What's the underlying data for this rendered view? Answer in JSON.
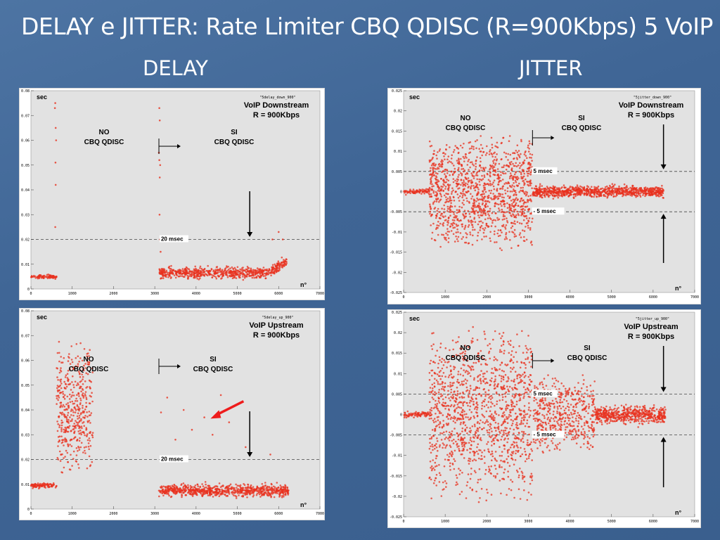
{
  "slide": {
    "title": "DELAY e JITTER: Rate Limiter CBQ QDISC (R=900Kbps) 5 VoIP",
    "left_heading": "DELAY",
    "right_heading": "JITTER"
  },
  "colors": {
    "points": "#e8321f",
    "arrow_red": "#ee1c1c",
    "plot_bg": "#e2e2e2",
    "threshold": "#444444"
  },
  "chart_data": [
    {
      "id": "delay_down",
      "type": "scatter",
      "file_label": "\"5delay_down_900\"",
      "ylabel": "sec",
      "xlabel": "n°",
      "xlim": [
        0,
        7000
      ],
      "ylim": [
        0,
        0.08
      ],
      "xticks": [
        "0",
        "1000",
        "2000",
        "3000",
        "4000",
        "5000",
        "6000",
        "7000"
      ],
      "yticks": [
        "0",
        "0.01",
        "0.02",
        "0.03",
        "0.04",
        "0.05",
        "0.06",
        "0.07",
        "0.08"
      ],
      "title_lines": [
        "VoIP Downstream",
        "R = 900Kbps"
      ],
      "no_label": [
        "NO",
        "CBQ QDISC"
      ],
      "si_label": [
        "SI",
        "CBQ QDISC"
      ],
      "threshold_lines": [
        {
          "y": 0.02,
          "label": "20 msec"
        }
      ],
      "series": [
        {
          "x_range": [
            0,
            620
          ],
          "y_base": 0.005,
          "spread": 0.0012,
          "count": 90,
          "style": "band"
        },
        {
          "x_range": [
            3100,
            6200
          ],
          "y_base": 0.0065,
          "spread": 0.0035,
          "count": 700,
          "style": "band_rising"
        }
      ],
      "outliers": [
        [
          580,
          0.073
        ],
        [
          590,
          0.075
        ],
        [
          600,
          0.065
        ],
        [
          610,
          0.06
        ],
        [
          595,
          0.051
        ],
        [
          600,
          0.042
        ],
        [
          590,
          0.025
        ],
        [
          3110,
          0.073
        ],
        [
          3120,
          0.068
        ],
        [
          3100,
          0.055
        ],
        [
          3110,
          0.052
        ],
        [
          3130,
          0.05
        ],
        [
          3120,
          0.045
        ],
        [
          3115,
          0.03
        ],
        [
          3125,
          0.02
        ],
        [
          3140,
          0.015
        ],
        [
          6000,
          0.023
        ],
        [
          6100,
          0.02
        ],
        [
          5850,
          0.02
        ]
      ]
    },
    {
      "id": "jitter_down",
      "type": "scatter",
      "file_label": "\"5jitter_down_900\"",
      "ylabel": "sec",
      "xlabel": "n°",
      "xlim": [
        0,
        7000
      ],
      "ylim": [
        -0.025,
        0.025
      ],
      "xticks": [
        "0",
        "1000",
        "2000",
        "3000",
        "4000",
        "5000",
        "6000",
        "7000"
      ],
      "yticks": [
        "-0.025",
        "-0.02",
        "-0.015",
        "-0.01",
        "-0.005",
        "0",
        "0.005",
        "0.01",
        "0.015",
        "0.02",
        "0.025"
      ],
      "title_lines": [
        "VoIP Downstream",
        "R = 900Kbps"
      ],
      "no_label": [
        "NO",
        "CBQ QDISC"
      ],
      "si_label": [
        "SI",
        "CBQ QDISC"
      ],
      "threshold_lines": [
        {
          "y": 0.005,
          "label": "5 msec"
        },
        {
          "y": -0.005,
          "label": "- 5 msec"
        }
      ],
      "series": [
        {
          "x_range": [
            0,
            620
          ],
          "y_base": 0.0,
          "spread": 0.001,
          "count": 80,
          "style": "band"
        },
        {
          "x_range": [
            620,
            3100
          ],
          "y_base": 0.0,
          "spread": 0.015,
          "count": 1300,
          "style": "cloud"
        },
        {
          "x_range": [
            3100,
            6250
          ],
          "y_base": 0.0,
          "spread": 0.0022,
          "count": 900,
          "style": "band"
        }
      ],
      "outliers": []
    },
    {
      "id": "delay_up",
      "type": "scatter",
      "file_label": "\"5delay_up_900\"",
      "ylabel": "sec",
      "xlabel": "n°",
      "xlim": [
        0,
        7000
      ],
      "ylim": [
        0,
        0.08
      ],
      "xticks": [
        "0",
        "1000",
        "2000",
        "3000",
        "4000",
        "5000",
        "6000",
        "7000"
      ],
      "yticks": [
        "0",
        "0.01",
        "0.02",
        "0.03",
        "0.04",
        "0.05",
        "0.06",
        "0.07",
        "0.08"
      ],
      "title_lines": [
        "VoIP Upstream",
        "R = 900Kbps"
      ],
      "no_label": [
        "NO",
        "CBQ QDISC"
      ],
      "si_label": [
        "SI",
        "CBQ QDISC"
      ],
      "threshold_lines": [
        {
          "y": 0.02,
          "label": "20 msec"
        }
      ],
      "series": [
        {
          "x_range": [
            0,
            620
          ],
          "y_base": 0.0095,
          "spread": 0.0015,
          "count": 100,
          "style": "band"
        },
        {
          "x_range": [
            620,
            1500
          ],
          "y_base": 0.04,
          "spread": 0.028,
          "count": 450,
          "style": "cloud"
        },
        {
          "x_range": [
            3100,
            6250
          ],
          "y_base": 0.0075,
          "spread": 0.004,
          "count": 800,
          "style": "band"
        }
      ],
      "outliers": [
        [
          3300,
          0.045
        ],
        [
          3700,
          0.04
        ],
        [
          4200,
          0.037
        ],
        [
          4600,
          0.046
        ],
        [
          4800,
          0.035
        ],
        [
          3900,
          0.032
        ],
        [
          4400,
          0.03
        ],
        [
          5200,
          0.025
        ],
        [
          5800,
          0.022
        ],
        [
          3500,
          0.028
        ],
        [
          3150,
          0.039
        ]
      ]
    },
    {
      "id": "jitter_up",
      "type": "scatter",
      "file_label": "\"5jitter_up_900\"",
      "ylabel": "sec",
      "xlabel": "n°",
      "xlim": [
        0,
        7000
      ],
      "ylim": [
        -0.025,
        0.025
      ],
      "xticks": [
        "0",
        "1000",
        "2000",
        "3000",
        "4000",
        "5000",
        "6000",
        "7000"
      ],
      "yticks": [
        "-0.025",
        "-0.02",
        "-0.015",
        "-0.01",
        "-0.005",
        "0",
        "0.005",
        "0.01",
        "0.015",
        "0.02",
        "0.025"
      ],
      "title_lines": [
        "VoIP Upstream",
        "R = 900Kbps"
      ],
      "no_label": [
        "NO",
        "CBQ QDISC"
      ],
      "si_label": [
        "SI",
        "CBQ QDISC"
      ],
      "threshold_lines": [
        {
          "y": 0.005,
          "label": "5 msec"
        },
        {
          "y": -0.005,
          "label": "- 5 msec"
        }
      ],
      "series": [
        {
          "x_range": [
            0,
            620
          ],
          "y_base": 0.0,
          "spread": 0.0012,
          "count": 80,
          "style": "band"
        },
        {
          "x_range": [
            620,
            3100
          ],
          "y_base": 0.0,
          "spread": 0.022,
          "count": 1300,
          "style": "cloud"
        },
        {
          "x_range": [
            3100,
            4600
          ],
          "y_base": 0.0,
          "spread": 0.01,
          "count": 500,
          "style": "cloud"
        },
        {
          "x_range": [
            4600,
            6300
          ],
          "y_base": 0.0,
          "spread": 0.0035,
          "count": 550,
          "style": "band"
        }
      ],
      "outliers": []
    }
  ]
}
